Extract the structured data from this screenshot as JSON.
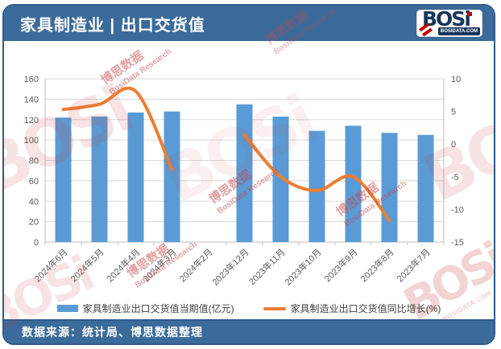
{
  "header": {
    "title": "家具制造业 | 出口交货值",
    "logo": {
      "brand": "BOSi",
      "domain": "BOSIDATA.COM"
    }
  },
  "chart_data": {
    "type": "bar",
    "combo": "bar+line, dual axis",
    "categories": [
      "2024年6月",
      "2024年5月",
      "2024年4月",
      "2024年3月",
      "2024年2月",
      "2023年12月",
      "2023年11月",
      "2023年10月",
      "2023年9月",
      "2023年8月",
      "2023年7月"
    ],
    "series": [
      {
        "name": "家具制造业出口交货值当期值(亿元)",
        "type": "bar",
        "axis": "left",
        "color": "#5B9BD5",
        "values": [
          122,
          123,
          127,
          128,
          null,
          135,
          123,
          109,
          114,
          107,
          105
        ]
      },
      {
        "name": "家具制造业出口交货值同比增长(%)",
        "type": "line",
        "axis": "right",
        "color": "#ED7D31",
        "values": [
          5.3,
          6.1,
          8.1,
          -3.9,
          null,
          1.4,
          -5.0,
          -7.1,
          -5.0,
          -11.7,
          null
        ]
      }
    ],
    "left_axis": {
      "min": 0,
      "max": 160,
      "step": 20,
      "ticks": [
        0,
        20,
        40,
        60,
        80,
        100,
        120,
        140,
        160
      ]
    },
    "right_axis": {
      "min": -15,
      "max": 10,
      "step": 5,
      "ticks": [
        -15,
        -10,
        -5,
        0,
        5,
        10
      ]
    },
    "grid": true,
    "legend_position": "bottom"
  },
  "footer": {
    "source": "数据来源：统计局、博思数据整理"
  },
  "watermark": {
    "brand": "BOSi",
    "cn": "博思数据",
    "en": "BosiData Research",
    "domain": "BOSIDATA.COM"
  },
  "colors": {
    "header_bg": "#3A6B9B",
    "card_border": "#2F5A8B",
    "bar": "#5B9BD5",
    "line": "#ED7D31",
    "axis_text": "#595959",
    "gridline": "#DADADA",
    "axis_line": "#BFBFBF",
    "watermark_red": "#C23B3B",
    "logo_navy": "#17365D",
    "logo_red": "#C00000"
  }
}
